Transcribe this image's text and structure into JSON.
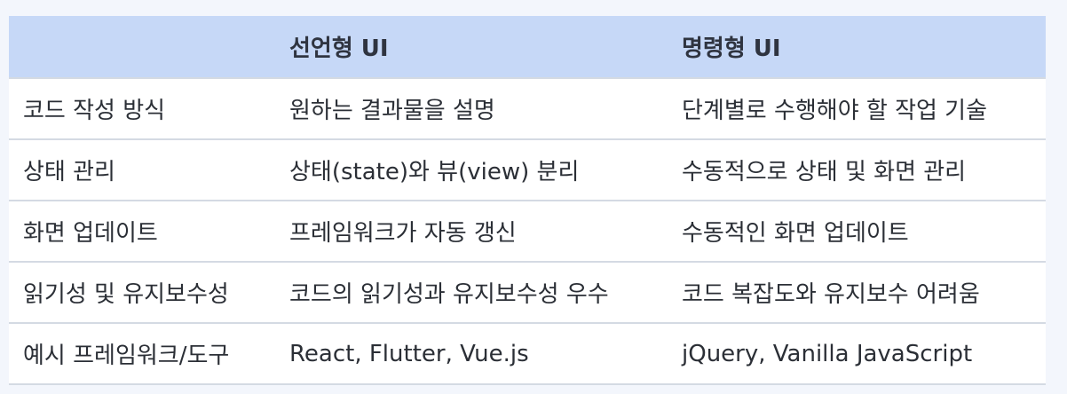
{
  "table": {
    "headers": [
      "",
      "선언형 UI",
      "명령형 UI"
    ],
    "rows": [
      [
        "코드 작성 방식",
        "원하는 결과물을 설명",
        "단계별로 수행해야 할 작업 기술"
      ],
      [
        "상태 관리",
        "상태(state)와 뷰(view) 분리",
        "수동적으로 상태 및 화면 관리"
      ],
      [
        "화면 업데이트",
        "프레임워크가 자동 갱신",
        "수동적인 화면 업데이트"
      ],
      [
        "읽기성 및 유지보수성",
        "코드의 읽기성과 유지보수성 우수",
        "코드 복잡도와 유지보수 어려움"
      ],
      [
        "예시 프레임워크/도구",
        "React, Flutter, Vue.js",
        "jQuery, Vanilla JavaScript"
      ]
    ]
  },
  "colors": {
    "header_bg": "#c6d8f7",
    "page_bg": "#f3f6fc",
    "row_border": "#d4dae3"
  }
}
